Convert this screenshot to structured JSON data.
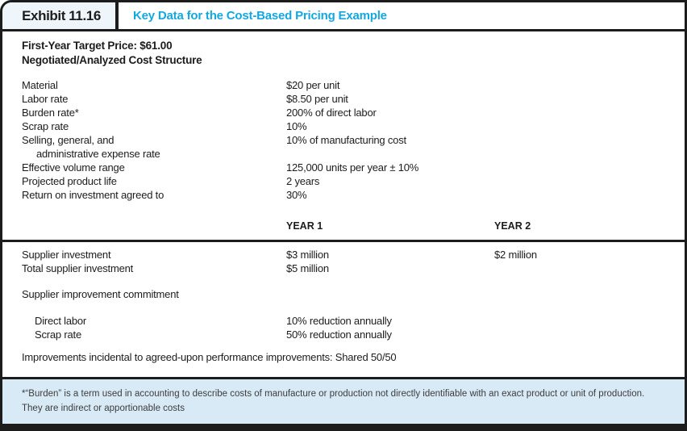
{
  "exhibit": {
    "label": "Exhibit 11.16",
    "title": "Key Data for the Cost-Based Pricing Example",
    "accent_color": "#14a7e0",
    "footnote_bg_color": "#d9eaf7"
  },
  "intro": {
    "line1": "First-Year Target Price: $61.00",
    "line2": "Negotiated/Analyzed Cost Structure"
  },
  "cost_structure": {
    "rows": [
      {
        "label": "Material",
        "value": "$20 per unit"
      },
      {
        "label": "Labor rate",
        "value": "$8.50 per unit"
      },
      {
        "label": "Burden rate*",
        "value": "200% of direct labor"
      },
      {
        "label": "Scrap rate",
        "value": "10%"
      },
      {
        "label": "Selling, general, and",
        "value": "10% of manufacturing cost"
      },
      {
        "label": "administrative expense rate",
        "value": ""
      },
      {
        "label": "Effective volume range",
        "value": "125,000 units per year ± 10%"
      },
      {
        "label": "Projected product life",
        "value": "2 years"
      },
      {
        "label": "Return on investment agreed to",
        "value": "30%"
      }
    ]
  },
  "investment_table": {
    "year1_header": "YEAR 1",
    "year2_header": "YEAR 2",
    "rows": [
      {
        "label": "Supplier investment",
        "year1": "$3 million",
        "year2": "$2 million"
      },
      {
        "label": "Total supplier investment",
        "year1": "$5 million",
        "year2": ""
      }
    ]
  },
  "improvement": {
    "heading": "Supplier improvement commitment",
    "rows": [
      {
        "label": "Direct labor",
        "value": "10% reduction annually"
      },
      {
        "label": "Scrap rate",
        "value": "50% reduction annually"
      }
    ],
    "note": "Improvements incidental to agreed-upon performance improvements: Shared 50/50"
  },
  "footnote": "*“Burden” is a term used in accounting to describe costs of manufacture or production not directly identifiable with an exact product or unit of production. They are indirect or apportionable costs"
}
